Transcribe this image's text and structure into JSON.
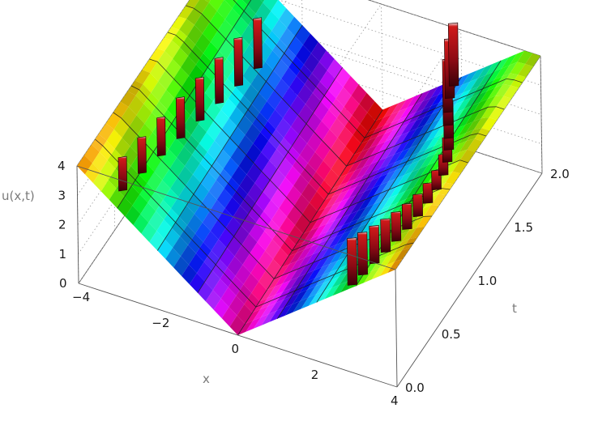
{
  "chart_data": {
    "type": "surface3d",
    "xlabel": "x",
    "ylabel": "t",
    "zlabel": "u(x,t)",
    "xlim": [
      -4,
      4
    ],
    "ylim": [
      0,
      2
    ],
    "zlim": [
      0,
      4
    ],
    "x_ticks": [
      "−4",
      "−2",
      "0",
      "2",
      "4"
    ],
    "y_ticks": [
      "0.0",
      "0.5",
      "1.0",
      "1.5",
      "2.0"
    ],
    "z_ticks": [
      "0",
      "1",
      "2",
      "3",
      "4"
    ],
    "x_tick_values": [
      -4,
      -2,
      0,
      2,
      4
    ],
    "y_tick_values": [
      0,
      0.5,
      1,
      1.5,
      2
    ],
    "z_tick_values": [
      0,
      1,
      2,
      3,
      4
    ],
    "grid": true,
    "colormap": "hue-rainbow",
    "surface": "u ≈ |x| + t, V-shaped valley with vertical discontinuity spikes clipped at the top of the plot range"
  }
}
